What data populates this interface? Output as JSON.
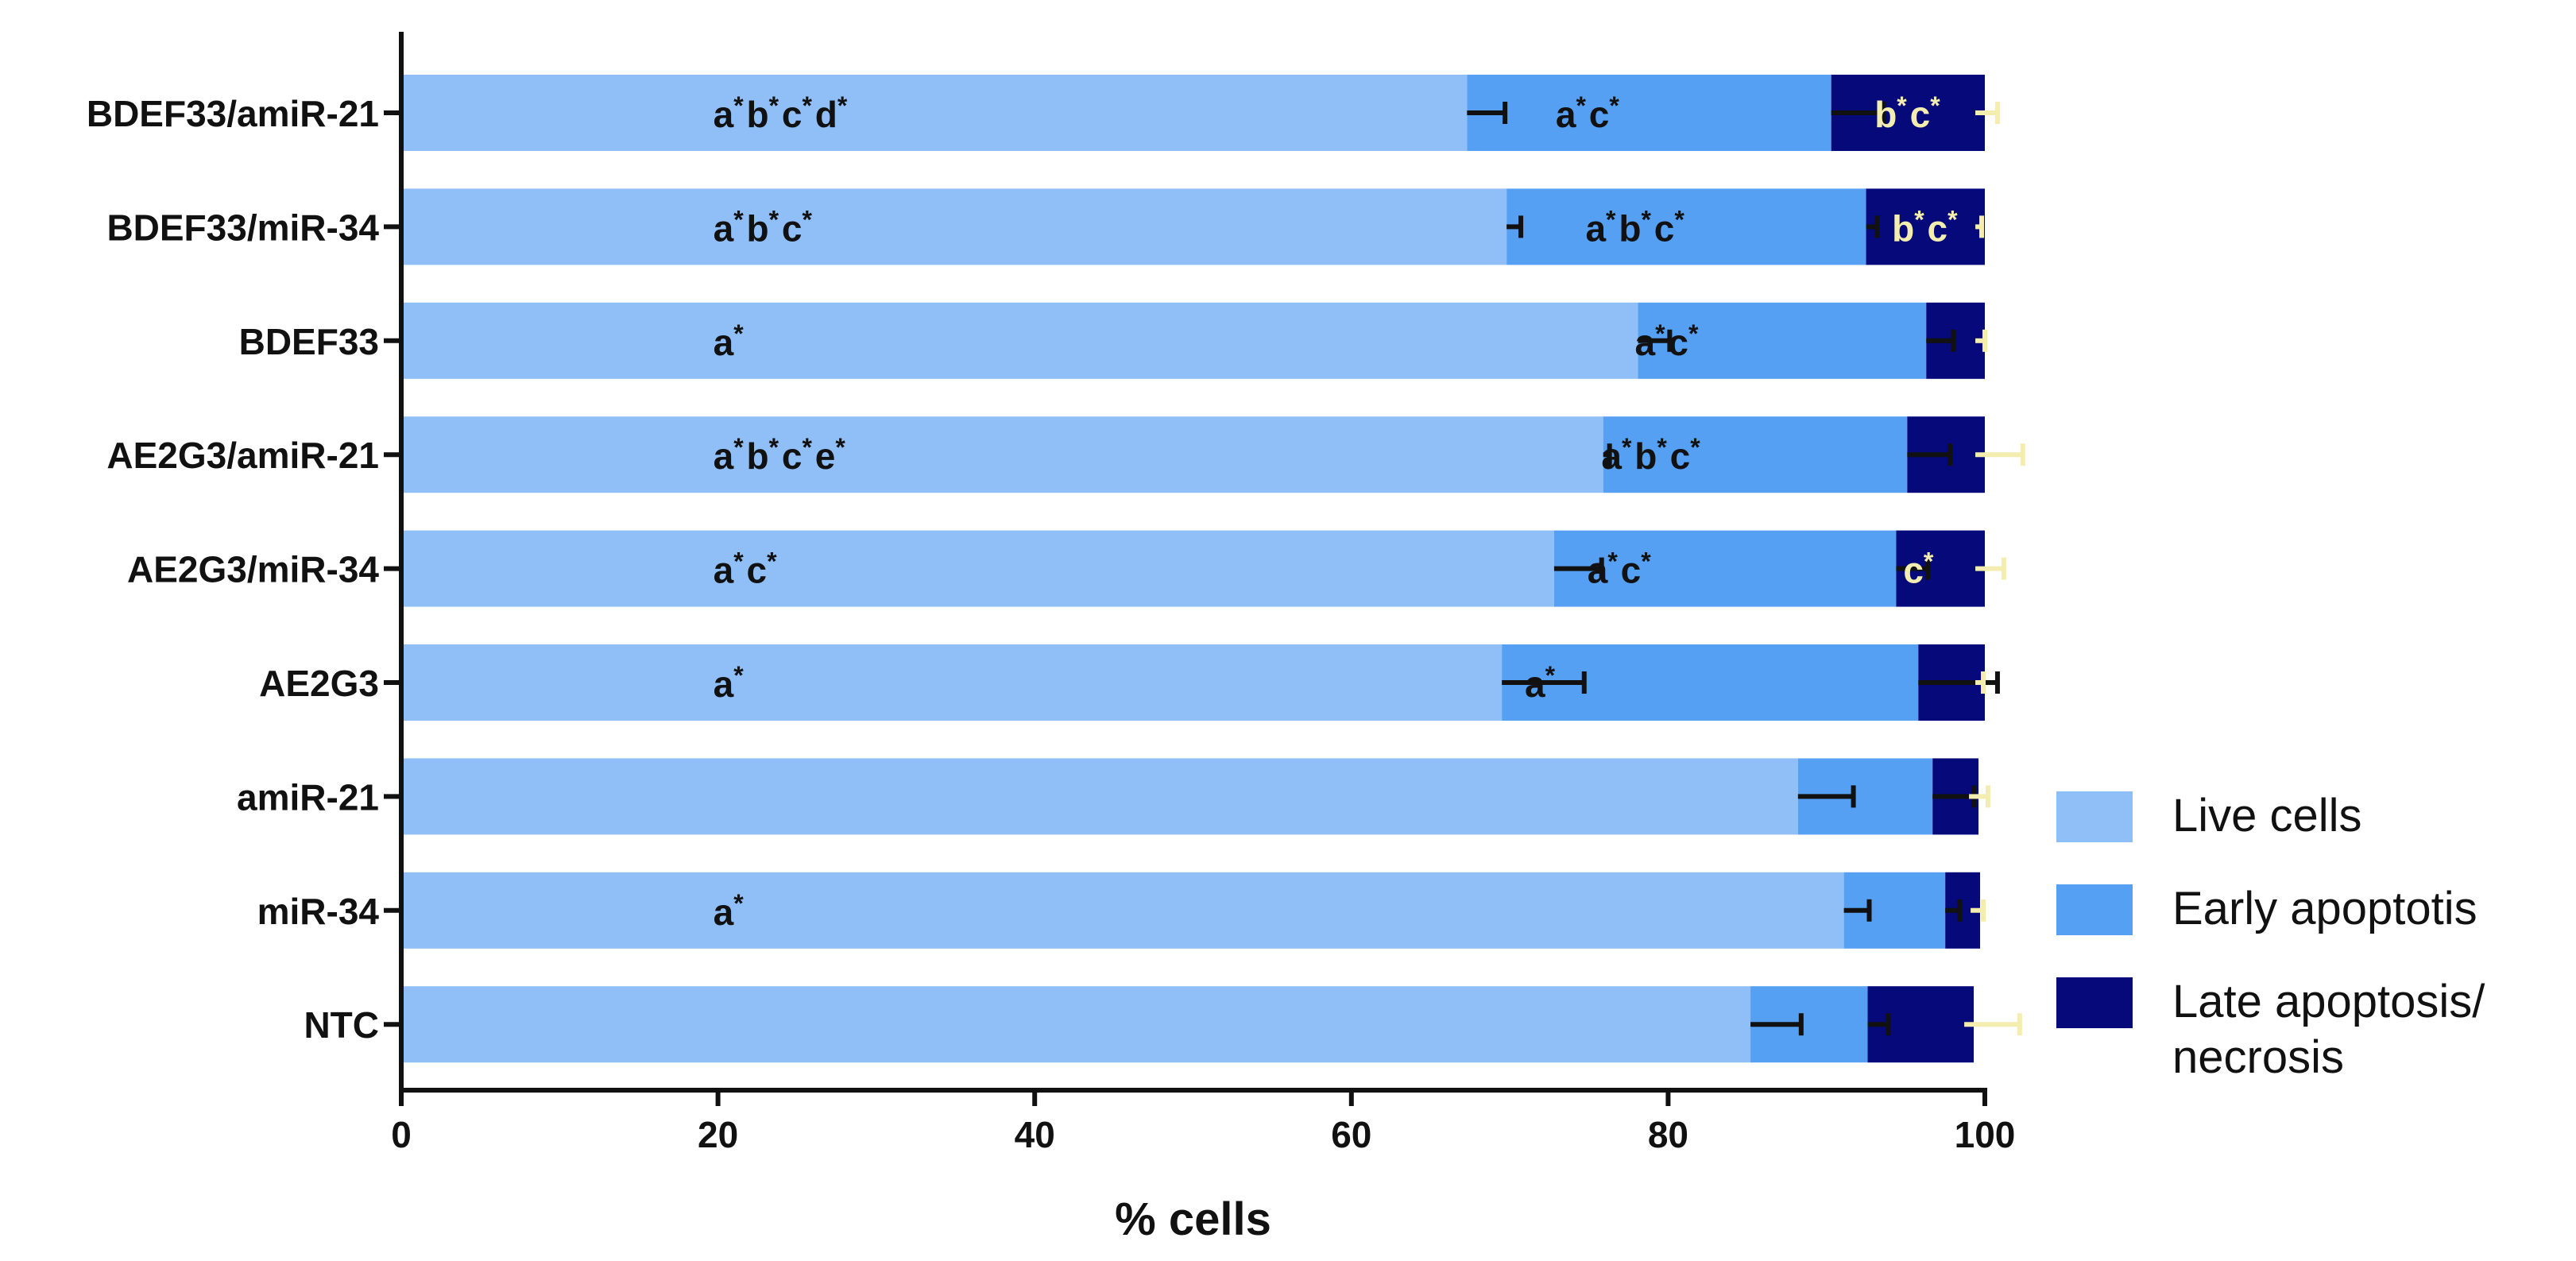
{
  "chart_data": {
    "type": "bar",
    "orientation": "horizontal",
    "stacked": true,
    "title": "",
    "xlabel": "% cells",
    "ylabel": "",
    "xlim": [
      0,
      100
    ],
    "x_ticks": [
      0,
      20,
      40,
      60,
      80,
      100
    ],
    "x_tick_labels": [
      "0",
      "20",
      "40",
      "60",
      "80",
      "100"
    ],
    "grid": false,
    "legend_position": "right",
    "categories": [
      "BDEF33/amiR-21",
      "BDEF33/miR-34",
      "BDEF33",
      "AE2G3/amiR-21",
      "AE2G3/miR-34",
      "AE2G3",
      "amiR-21",
      "miR-34",
      "NTC"
    ],
    "series": [
      {
        "name": "Live cells",
        "color": "#90bff7",
        "values": [
          67.3,
          69.8,
          78.1,
          75.9,
          72.8,
          69.5,
          88.2,
          91.1,
          85.2
        ],
        "errors": [
          2.4,
          0.9,
          2.0,
          0.4,
          3.0,
          5.2,
          3.5,
          1.6,
          3.2
        ],
        "error_bar_color": "#111111",
        "error_end_offset": 0
      },
      {
        "name": "Early apoptotis",
        "color": "#56a0f4",
        "values": [
          23.0,
          22.7,
          18.2,
          19.2,
          21.6,
          26.3,
          8.5,
          6.4,
          7.4
        ],
        "errors": [
          3.3,
          0.7,
          1.7,
          2.7,
          2.0,
          5.0,
          2.6,
          0.9,
          1.3
        ],
        "error_bar_color": "#111111",
        "error_end_offset": 0
      },
      {
        "name": "Late apoptosis/\nnecrosis",
        "color": "#06097a",
        "values": [
          9.7,
          7.5,
          3.7,
          4.9,
          5.6,
          4.2,
          2.9,
          2.2,
          6.7
        ],
        "errors": [
          1.4,
          0.4,
          0.6,
          3.0,
          1.8,
          0.5,
          1.2,
          0.8,
          3.5
        ],
        "error_bar_color": "#f3eeb0",
        "error_end_offset": -0.6
      }
    ],
    "annotations": {
      "live": [
        {
          "row": 0,
          "segments": [
            [
              "a",
              "*"
            ],
            [
              "b",
              "*"
            ],
            [
              "c",
              "*"
            ],
            [
              "d",
              "*"
            ]
          ]
        },
        {
          "row": 1,
          "segments": [
            [
              "a",
              "*"
            ],
            [
              "b",
              "*"
            ],
            [
              "c",
              "*"
            ]
          ]
        },
        {
          "row": 2,
          "segments": [
            [
              "a",
              "*"
            ]
          ]
        },
        {
          "row": 3,
          "segments": [
            [
              "a",
              "*"
            ],
            [
              "b",
              "*"
            ],
            [
              "c",
              "*"
            ],
            [
              "e",
              "*"
            ]
          ]
        },
        {
          "row": 4,
          "segments": [
            [
              "a",
              "*"
            ],
            [
              "c",
              "*"
            ]
          ]
        },
        {
          "row": 5,
          "segments": [
            [
              "a",
              "*"
            ]
          ]
        },
        {
          "row": 7,
          "segments": [
            [
              "a",
              "*"
            ]
          ]
        }
      ],
      "early": [
        {
          "row": 0,
          "segments": [
            [
              "a",
              "*"
            ],
            [
              "c",
              "*"
            ]
          ]
        },
        {
          "row": 1,
          "segments": [
            [
              "a",
              "*"
            ],
            [
              "b",
              "*"
            ],
            [
              "c",
              "*"
            ]
          ]
        },
        {
          "row": 2,
          "segments": [
            [
              "a",
              "*"
            ],
            [
              "c",
              "*"
            ]
          ]
        },
        {
          "row": 3,
          "segments": [
            [
              "a",
              "*"
            ],
            [
              "b",
              "*"
            ],
            [
              "c",
              "*"
            ]
          ]
        },
        {
          "row": 4,
          "segments": [
            [
              "a",
              "*"
            ],
            [
              "c",
              "*"
            ]
          ]
        },
        {
          "row": 5,
          "segments": [
            [
              "a",
              "*"
            ]
          ]
        }
      ],
      "late": [
        {
          "row": 0,
          "segments": [
            [
              "b",
              "*"
            ],
            [
              "c",
              "*"
            ]
          ]
        },
        {
          "row": 1,
          "segments": [
            [
              "b",
              "*"
            ],
            [
              "c",
              "*"
            ]
          ]
        },
        {
          "row": 4,
          "segments": [
            [
              "c",
              "*"
            ]
          ]
        }
      ]
    },
    "annotation_positions": {
      "live_x": 20,
      "early_x": [
        75,
        78,
        80,
        79,
        77,
        72
      ],
      "late_x": [
        95.2,
        96.3,
        null,
        null,
        95.9
      ]
    }
  },
  "colors": {
    "axis": "#111111",
    "text": "#111111",
    "late_label": "#f3eeb0"
  }
}
